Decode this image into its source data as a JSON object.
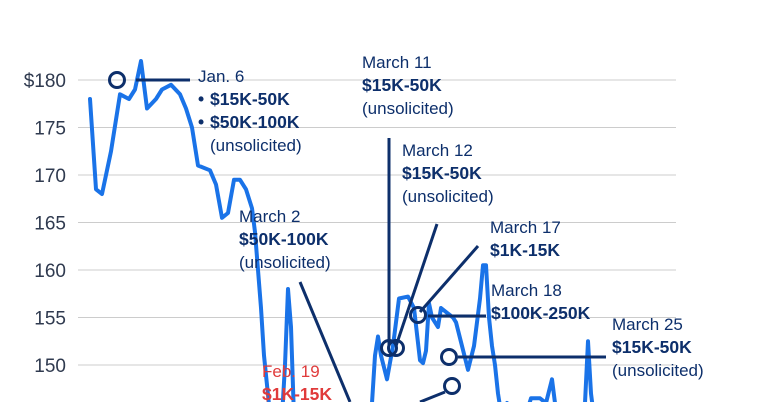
{
  "colors": {
    "line": "#1a73e8",
    "annotation": "#0d2f6b",
    "annotation_red": "#e03b3b",
    "grid": "#cccccc",
    "tick": "#2f3a4f"
  },
  "chart_data": {
    "type": "line",
    "title": "",
    "xlabel": "",
    "ylabel": "",
    "ylim": [
      144.5,
      184
    ],
    "yticks": [
      {
        "value": 180,
        "label": "$180"
      },
      {
        "value": 175,
        "label": "175"
      },
      {
        "value": 170,
        "label": "170"
      },
      {
        "value": 165,
        "label": "165"
      },
      {
        "value": 160,
        "label": "160"
      },
      {
        "value": 155,
        "label": "155"
      },
      {
        "value": 150,
        "label": "150"
      }
    ],
    "grid": true,
    "series": [
      {
        "values": [
          [
            0,
            178
          ],
          [
            2,
            168.5
          ],
          [
            4,
            168
          ],
          [
            7,
            172.5
          ],
          [
            10,
            178.5
          ],
          [
            13,
            178
          ],
          [
            15,
            179
          ],
          [
            17,
            182
          ],
          [
            19,
            177
          ],
          [
            22,
            178
          ],
          [
            24,
            179
          ],
          [
            27,
            179.5
          ],
          [
            30,
            178.5
          ],
          [
            32,
            177
          ],
          [
            34,
            175
          ],
          [
            36,
            171
          ],
          [
            40,
            170.5
          ],
          [
            42,
            169
          ],
          [
            44,
            165.5
          ],
          [
            46,
            166
          ],
          [
            48,
            169.5
          ],
          [
            50,
            169.5
          ],
          [
            52,
            168.5
          ],
          [
            54,
            166.5
          ],
          [
            55,
            164
          ],
          [
            56,
            160
          ],
          [
            57,
            156
          ],
          [
            58,
            151
          ],
          [
            60,
            144.8
          ],
          [
            62,
            144.5
          ],
          [
            64,
            144.5
          ],
          [
            65,
            150
          ],
          [
            66,
            158
          ],
          [
            67,
            154
          ],
          [
            68,
            144.5
          ],
          [
            69,
            144.5
          ],
          [
            92,
            144.5
          ],
          [
            94,
            146
          ],
          [
            95,
            151
          ],
          [
            96,
            153
          ],
          [
            97,
            151
          ],
          [
            99,
            148.5
          ],
          [
            101,
            152
          ],
          [
            103,
            157
          ],
          [
            106,
            157.2
          ],
          [
            108,
            156
          ],
          [
            110,
            150.5
          ],
          [
            111,
            150.2
          ],
          [
            112,
            151.5
          ],
          [
            113,
            156.5
          ],
          [
            114,
            155
          ],
          [
            116,
            154
          ],
          [
            117,
            156
          ],
          [
            119,
            155.5
          ],
          [
            121,
            155
          ],
          [
            122,
            154.5
          ],
          [
            124,
            152
          ],
          [
            126,
            149.5
          ],
          [
            128,
            152
          ],
          [
            130,
            157
          ],
          [
            131,
            160.5
          ],
          [
            132,
            160.5
          ],
          [
            133,
            155
          ],
          [
            134,
            152
          ],
          [
            135,
            150
          ],
          [
            136,
            147
          ],
          [
            137,
            145
          ],
          [
            139,
            146
          ],
          [
            141,
            144.5
          ],
          [
            145,
            144.5
          ],
          [
            147,
            146.5
          ],
          [
            150,
            146.5
          ],
          [
            152,
            146
          ],
          [
            154,
            148.5
          ],
          [
            155,
            146
          ],
          [
            156,
            144.5
          ],
          [
            163,
            144.5
          ],
          [
            165,
            146
          ],
          [
            166,
            152.5
          ],
          [
            167,
            147
          ],
          [
            168,
            144.5
          ],
          [
            179,
            144.5
          ],
          [
            181,
            144.8
          ],
          [
            182,
            144.5
          ],
          [
            184,
            144.5
          ]
        ]
      }
    ],
    "annotations": [
      {
        "id": "jan6",
        "date": "Jan. 6",
        "value": 180,
        "items": [
          "$15K-50K",
          "$50K-100K"
        ],
        "bullets": true,
        "unsolicited": "(unsolicited)",
        "color": "annotation",
        "marker_x": 17
      },
      {
        "id": "mar11",
        "date": "March 11",
        "value": 151.3,
        "items": [
          "$15K-50K"
        ],
        "bullets": false,
        "unsolicited": "(unsolicited)",
        "color": "annotation",
        "marker_x": 112
      },
      {
        "id": "mar12",
        "date": "March 12",
        "value": 151.3,
        "items": [
          "$15K-50K"
        ],
        "bullets": false,
        "unsolicited": "(unsolicited)",
        "color": "annotation",
        "marker_x": 114
      },
      {
        "id": "mar17",
        "date": "March 17",
        "value": 155.1,
        "items": [
          "$1K-15K"
        ],
        "bullets": false,
        "unsolicited": "",
        "color": "annotation",
        "marker_x": 121
      },
      {
        "id": "mar18",
        "date": "March 18",
        "value": 155.1,
        "items": [
          "$100K-250K"
        ],
        "bullets": false,
        "unsolicited": "",
        "color": "annotation",
        "marker_x": 121
      },
      {
        "id": "mar25",
        "date": "March 25",
        "value": 150.8,
        "items": [
          "$15K-50K"
        ],
        "bullets": false,
        "unsolicited": "(unsolicited)",
        "color": "annotation",
        "marker_x": 131
      },
      {
        "id": "mar2",
        "date": "March 2",
        "value": 144.5,
        "items": [
          "$50K-100K"
        ],
        "bullets": false,
        "unsolicited": "(unsolicited)",
        "color": "annotation",
        "marker_x": 98
      },
      {
        "id": "feb19",
        "date": "Feb. 19",
        "value": 144.5,
        "items": [
          "$1K-15K"
        ],
        "bullets": false,
        "unsolicited": "",
        "color": "annotation_red",
        "marker_x": 0
      }
    ],
    "extra_markers": [
      {
        "x": 132,
        "value": 147.6
      }
    ]
  }
}
